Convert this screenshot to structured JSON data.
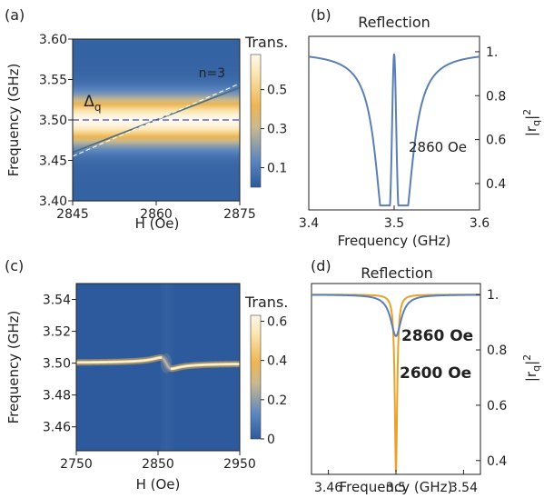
{
  "colors": {
    "axis": "#222222",
    "blue_curve": "#5b7fb5",
    "orange_curve": "#e8a12a",
    "dark_blue": "#2d5a9e",
    "blue_label": "#4a78c4",
    "orange_label": "#e8a12a",
    "line_label_a": "#ffffff",
    "colormap": [
      "#2c5a9c",
      "#5a86c0",
      "#c9b98f",
      "#eeb653",
      "#fbe5b0",
      "#fff8ea"
    ]
  },
  "chart_data": [
    {
      "id": "a",
      "panel_label": "(a)",
      "type": "heatmap",
      "title": "",
      "xlabel": "H (Oe)",
      "ylabel": "Frequency (GHz)",
      "xlim": [
        2845,
        2875
      ],
      "ylim": [
        3.4,
        3.6
      ],
      "xticks": [
        2845,
        2860,
        2875
      ],
      "yticks": [
        3.4,
        3.45,
        3.5,
        3.55,
        3.6
      ],
      "ytick_labels": [
        "3.40",
        "3.45",
        "3.50",
        "3.55",
        "3.60"
      ],
      "band_center": 3.5,
      "colorbar": {
        "label": "Trans.",
        "ticks": [
          0.1,
          0.3,
          0.5
        ],
        "range": [
          0.0,
          0.68
        ]
      },
      "lines": [
        {
          "x": [
            2845,
            2875
          ],
          "y": [
            3.46,
            3.54
          ],
          "style": "solid"
        },
        {
          "x": [
            2845,
            2875
          ],
          "y": [
            3.455,
            3.545
          ],
          "style": "dashed"
        },
        {
          "x": [
            2845,
            2875
          ],
          "y": [
            3.5,
            3.5
          ],
          "style": "dashed"
        }
      ],
      "annotations": [
        {
          "text": "Δ",
          "sub": "q",
          "x": 2847,
          "y": 3.517
        },
        {
          "text": "n=3",
          "x": 2870,
          "y": 3.553
        }
      ]
    },
    {
      "id": "b",
      "panel_label": "(b)",
      "type": "line",
      "title": "Reflection",
      "xlabel": "Frequency (GHz)",
      "ylabel": "|r_q|^2",
      "ylabel_main": "|r",
      "ylabel_sub": "q",
      "ylabel_end": "|",
      "ylabel_sup": "2",
      "xlim": [
        3.4,
        3.6
      ],
      "ylim": [
        0.28,
        1.07
      ],
      "xticks": [
        3.4,
        3.5,
        3.6
      ],
      "xtick_labels": [
        "3.4",
        "3.5",
        "3.6"
      ],
      "yticks": [
        0.4,
        0.6,
        0.8,
        1.0
      ],
      "ytick_labels": [
        "0.4",
        "0.6",
        "0.8",
        "1."
      ],
      "series": [
        {
          "name": "2860 Oe",
          "dips": [
            {
              "center": 3.4885,
              "depth": 0.67,
              "width": 0.0128
            },
            {
              "center": 3.5115,
              "depth": 0.67,
              "width": 0.0128
            }
          ],
          "peak_at": 3.5,
          "peak_value": 0.99
        }
      ]
    },
    {
      "id": "c",
      "panel_label": "(c)",
      "type": "heatmap",
      "title": "",
      "xlabel": "H (Oe)",
      "ylabel": "Frequency (GHz)",
      "xlim": [
        2750,
        2950
      ],
      "ylim": [
        3.445,
        3.55
      ],
      "xticks": [
        2750,
        2850,
        2950
      ],
      "yticks": [
        3.46,
        3.48,
        3.5,
        3.52,
        3.54
      ],
      "ytick_labels": [
        "3.46",
        "3.48",
        "3.50",
        "3.52",
        "3.54"
      ],
      "band_center": 3.5,
      "anticrossing_at": 2860,
      "colorbar": {
        "label": "Trans.",
        "ticks": [
          0,
          0.2,
          0.4,
          0.6
        ],
        "range": [
          0.0,
          0.63
        ]
      }
    },
    {
      "id": "d",
      "panel_label": "(d)",
      "type": "line",
      "title": "Reflection",
      "xlabel": "Frequency (GHz)",
      "ylabel": "|r_q|^2",
      "ylabel_main": "|r",
      "ylabel_sub": "q",
      "ylabel_end": "|",
      "ylabel_sup": "2",
      "xlim": [
        3.45,
        3.55
      ],
      "ylim": [
        0.35,
        1.04
      ],
      "xticks": [
        3.46,
        3.5,
        3.54
      ],
      "xtick_labels": [
        "3.46",
        "3.5",
        "3.54"
      ],
      "yticks": [
        0.4,
        0.6,
        0.8,
        1.0
      ],
      "ytick_labels": [
        "0.4",
        "0.6",
        "0.8",
        "1."
      ],
      "series": [
        {
          "name": "2860 Oe",
          "dips": [
            {
              "center": 3.5,
              "depth": 0.15,
              "width": 0.0038
            }
          ]
        },
        {
          "name": "2600 Oe",
          "dips": [
            {
              "center": 3.5,
              "depth": 0.64,
              "width": 0.00085
            }
          ]
        }
      ]
    }
  ]
}
